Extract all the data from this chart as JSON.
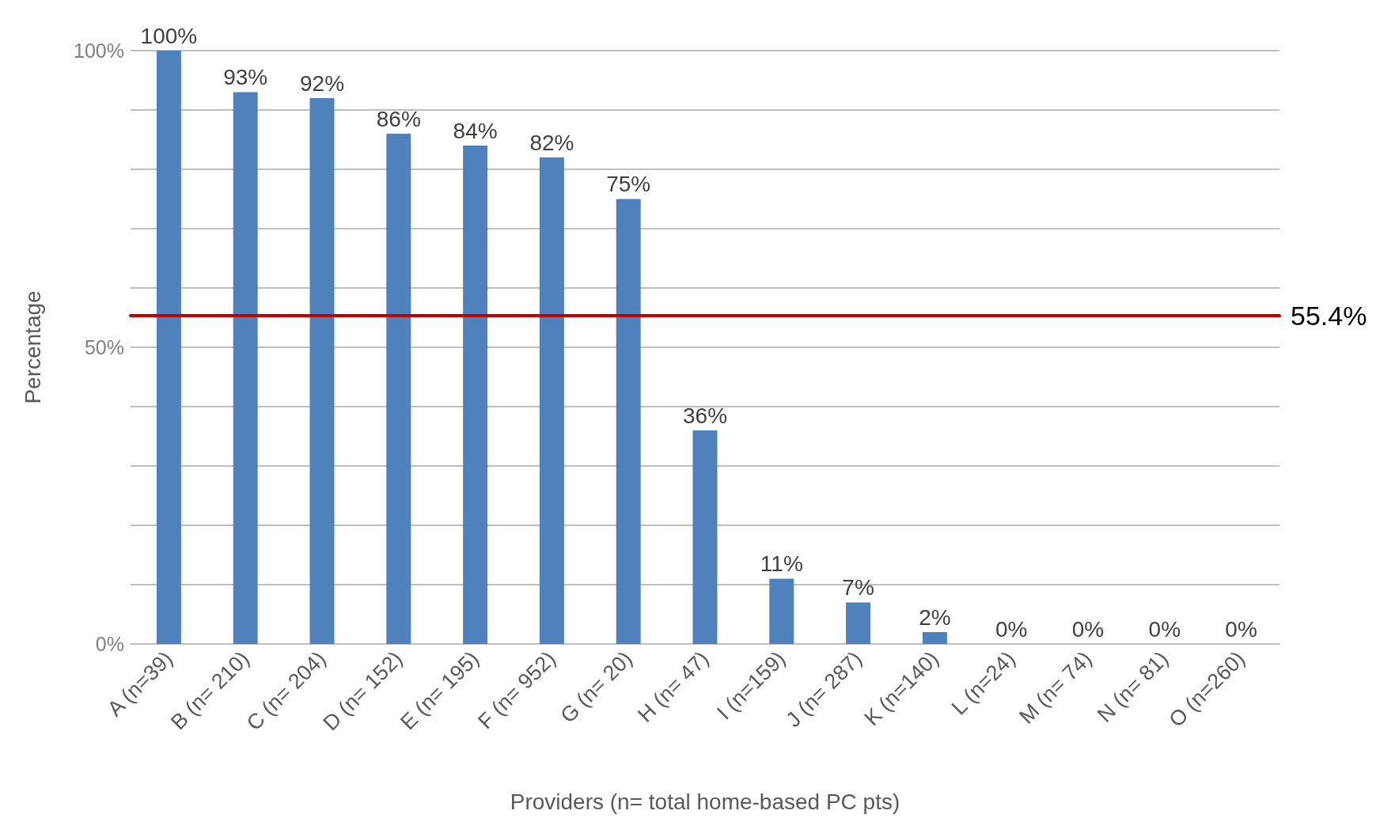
{
  "chart_data": {
    "type": "bar",
    "xlabel": "Providers (n= total home-based PC pts)",
    "ylabel": "Percentage",
    "categories": [
      "A (n=39)",
      "B (n= 210)",
      "C (n= 204)",
      "D (n= 152)",
      "E (n= 195)",
      "F (n= 952)",
      "G (n= 20)",
      "H (n= 47)",
      "I (n=159)",
      "J (n= 287)",
      "K (n=140)",
      "L (n=24)",
      "M (n= 74)",
      "N (n= 81)",
      "O (n=260)"
    ],
    "values": [
      100,
      93,
      92,
      86,
      84,
      82,
      75,
      36,
      11,
      7,
      2,
      0,
      0,
      0,
      0
    ],
    "value_labels": [
      "100%",
      "93%",
      "92%",
      "86%",
      "84%",
      "82%",
      "75%",
      "36%",
      "11%",
      "7%",
      "2%",
      "0%",
      "0%",
      "0%",
      "0%"
    ],
    "color": "#4f81bd",
    "ylim": [
      0,
      100
    ],
    "yticks": [
      {
        "value": 0,
        "label": "0%"
      },
      {
        "value": 10,
        "label": null
      },
      {
        "value": 20,
        "label": null
      },
      {
        "value": 30,
        "label": null
      },
      {
        "value": 40,
        "label": null
      },
      {
        "value": 50,
        "label": "50%"
      },
      {
        "value": 60,
        "label": null
      },
      {
        "value": 70,
        "label": null
      },
      {
        "value": 80,
        "label": null
      },
      {
        "value": 90,
        "label": null
      },
      {
        "value": 100,
        "label": "100%"
      }
    ],
    "grid": "y",
    "ref_lines": [
      {
        "axis": "y",
        "value": 55.4,
        "label": "55.4%",
        "color": "#c00000",
        "line_style": "solid"
      }
    ]
  }
}
